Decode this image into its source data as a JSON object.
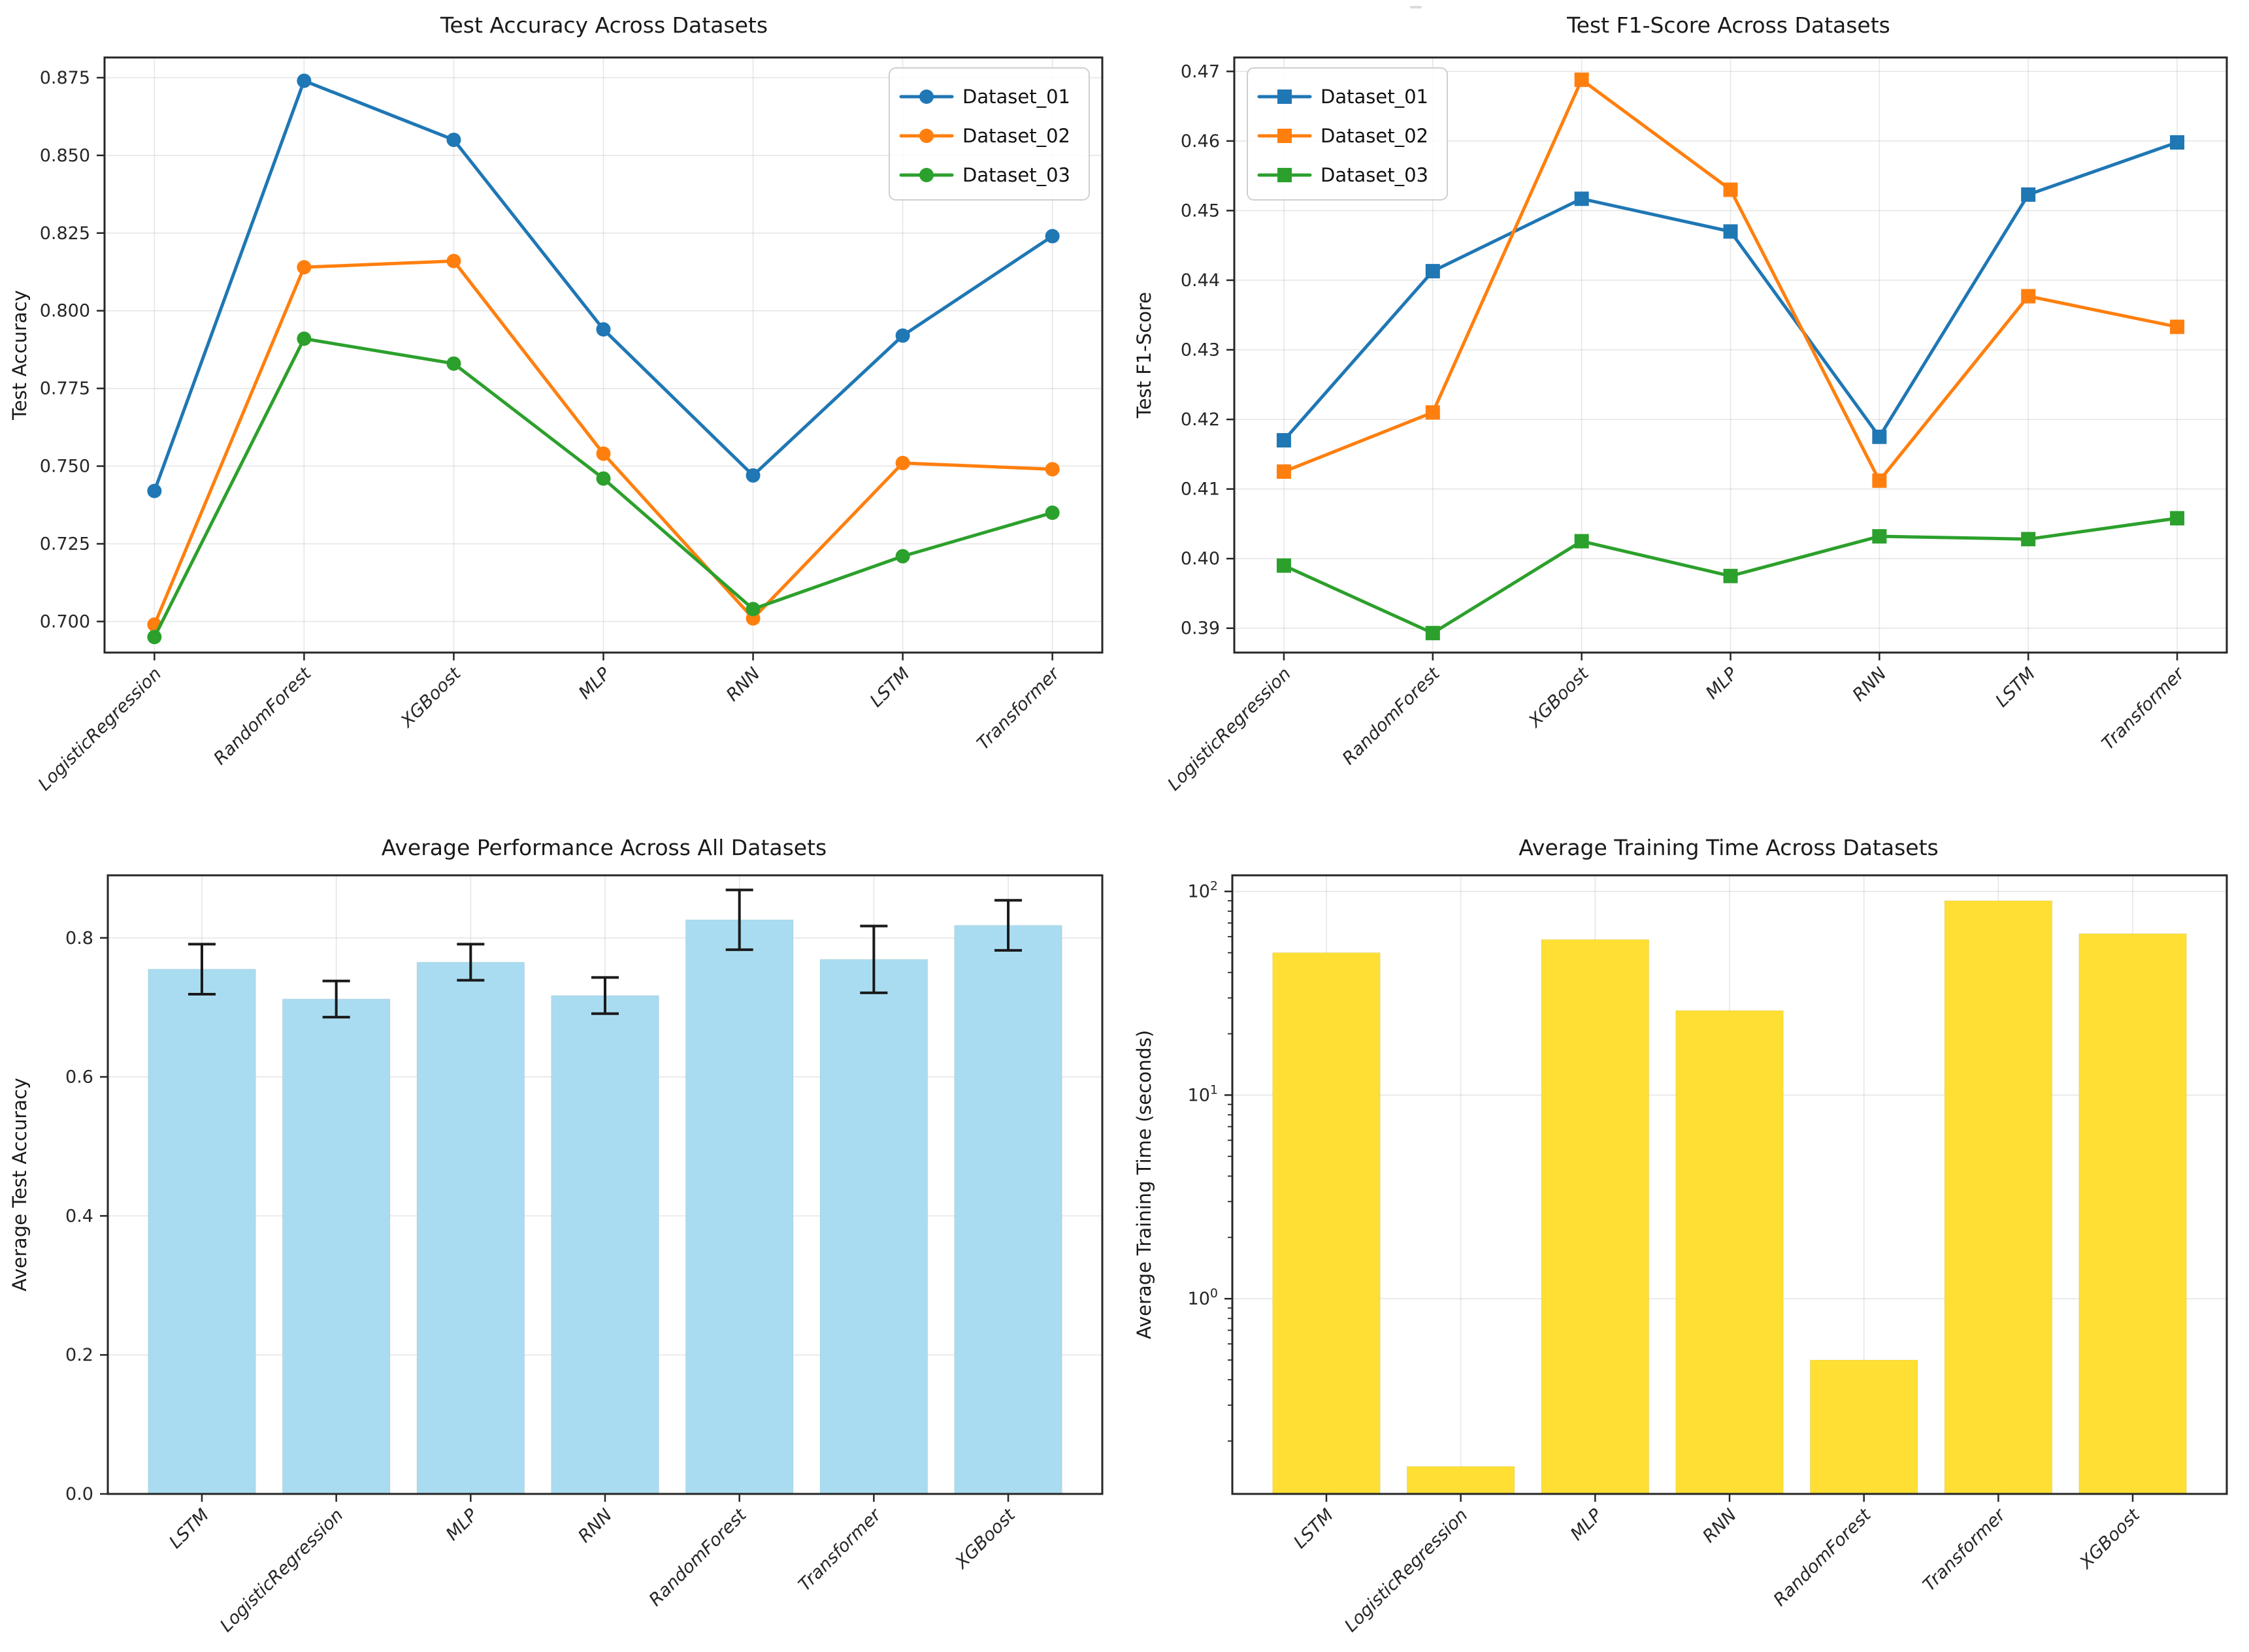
{
  "page": {
    "background": "#ffffff"
  },
  "colors": {
    "axis_spine": "#262626",
    "tick_text": "#262626",
    "label_text": "#1a1a1a",
    "grid_line": "#c9c9c9",
    "series_blue": "#1f77b4",
    "series_orange": "#ff7f0e",
    "series_green": "#2ca02c",
    "bar_skyblue": "#a9dcf0",
    "bar_gold": "#ffdf33",
    "error_bar": "#1a1a1a",
    "legend_border": "#cfcfcf"
  },
  "chart_data": [
    {
      "id": "test-accuracy",
      "type": "line",
      "title": "Test Accuracy Across Datasets",
      "xlabel": "",
      "ylabel": "Test Accuracy",
      "categories": [
        "LogisticRegression",
        "RandomForest",
        "XGBoost",
        "MLP",
        "RNN",
        "LSTM",
        "Transformer"
      ],
      "series": [
        {
          "name": "Dataset_01",
          "color": "#1f77b4",
          "marker": "circle",
          "values": [
            0.742,
            0.874,
            0.855,
            0.794,
            0.747,
            0.792,
            0.824
          ]
        },
        {
          "name": "Dataset_02",
          "color": "#ff7f0e",
          "marker": "circle",
          "values": [
            0.699,
            0.814,
            0.816,
            0.754,
            0.701,
            0.751,
            0.749
          ]
        },
        {
          "name": "Dataset_03",
          "color": "#2ca02c",
          "marker": "circle",
          "values": [
            0.695,
            0.791,
            0.783,
            0.746,
            0.704,
            0.721,
            0.735
          ]
        }
      ],
      "ylim": [
        0.69,
        0.8815
      ],
      "yticks": [
        0.7,
        0.725,
        0.75,
        0.775,
        0.8,
        0.825,
        0.85,
        0.875
      ],
      "ytick_decimals": 3,
      "legend_position": "upper-right",
      "grid": true
    },
    {
      "id": "test-f1-score",
      "type": "line",
      "title": "Test F1-Score Across Datasets",
      "xlabel": "",
      "ylabel": "Test F1-Score",
      "categories": [
        "LogisticRegression",
        "RandomForest",
        "XGBoost",
        "MLP",
        "RNN",
        "LSTM",
        "Transformer"
      ],
      "series": [
        {
          "name": "Dataset_01",
          "color": "#1f77b4",
          "marker": "square",
          "values": [
            0.417,
            0.4413,
            0.4517,
            0.447,
            0.4175,
            0.4523,
            0.4598
          ]
        },
        {
          "name": "Dataset_02",
          "color": "#ff7f0e",
          "marker": "square",
          "values": [
            0.4125,
            0.421,
            0.4688,
            0.453,
            0.4112,
            0.4377,
            0.4333
          ]
        },
        {
          "name": "Dataset_03",
          "color": "#2ca02c",
          "marker": "square",
          "values": [
            0.399,
            0.3893,
            0.4025,
            0.3975,
            0.4032,
            0.4028,
            0.4058
          ]
        }
      ],
      "ylim": [
        0.3865,
        0.472
      ],
      "yticks": [
        0.39,
        0.4,
        0.41,
        0.42,
        0.43,
        0.44,
        0.45,
        0.46,
        0.47
      ],
      "ytick_decimals": 2,
      "legend_position": "upper-left",
      "grid": true
    },
    {
      "id": "average-performance",
      "type": "bar",
      "title": "Average Performance Across All Datasets",
      "xlabel": "",
      "ylabel": "Average Test Accuracy",
      "categories": [
        "LSTM",
        "LogisticRegression",
        "MLP",
        "RNN",
        "RandomForest",
        "Transformer",
        "XGBoost"
      ],
      "values": [
        0.755,
        0.712,
        0.765,
        0.717,
        0.826,
        0.769,
        0.818
      ],
      "errors": [
        0.036,
        0.026,
        0.026,
        0.026,
        0.043,
        0.048,
        0.036
      ],
      "bar_color": "#a9dcf0",
      "error_color": "#1a1a1a",
      "ylim": [
        0,
        0.89
      ],
      "yticks": [
        0.0,
        0.2,
        0.4,
        0.6,
        0.8
      ],
      "ytick_decimals": 1,
      "grid": true
    },
    {
      "id": "average-training-time",
      "type": "bar",
      "scale": "log",
      "title": "Average Training Time Across Datasets",
      "xlabel": "",
      "ylabel": "Average Training Time (seconds)",
      "categories": [
        "LSTM",
        "LogisticRegression",
        "MLP",
        "RNN",
        "RandomForest",
        "Transformer",
        "XGBoost"
      ],
      "values": [
        50,
        0.15,
        58,
        26,
        0.5,
        90,
        62
      ],
      "bar_color": "#ffdf33",
      "ylim": [
        0.11,
        120
      ],
      "ytick_exponents": [
        0,
        1,
        2
      ],
      "grid": true
    }
  ]
}
